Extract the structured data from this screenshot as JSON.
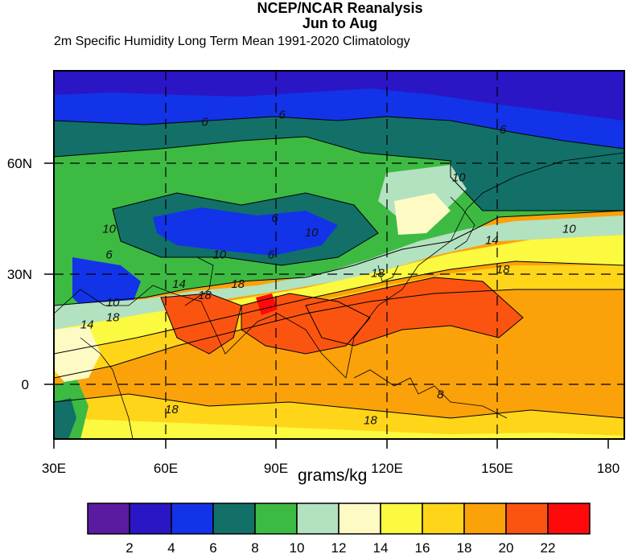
{
  "title": "NCEP/NCAR Reanalysis",
  "subtitle": "Jun to Aug",
  "description": "2m Specific Humidity Long Term Mean 1991-2020 Climatology",
  "units": "grams/kg",
  "x_ticks": [
    "30E",
    "60E",
    "90E",
    "120E",
    "150E",
    "180"
  ],
  "y_ticks": [
    "60N",
    "30N",
    "0"
  ],
  "contour_labels": [
    {
      "text": "6",
      "lon": 71,
      "lat": 70
    },
    {
      "text": "6",
      "lon": 92,
      "lat": 72
    },
    {
      "text": "6",
      "lon": 152,
      "lat": 68
    },
    {
      "text": "10",
      "lon": 140,
      "lat": 55
    },
    {
      "text": "10",
      "lon": 45,
      "lat": 41
    },
    {
      "text": "6",
      "lon": 90,
      "lat": 44
    },
    {
      "text": "10",
      "lon": 100,
      "lat": 40
    },
    {
      "text": "10",
      "lon": 170,
      "lat": 41
    },
    {
      "text": "6",
      "lon": 45,
      "lat": 34
    },
    {
      "text": "10",
      "lon": 75,
      "lat": 34
    },
    {
      "text": "6",
      "lon": 89,
      "lat": 34
    },
    {
      "text": "14",
      "lon": 149,
      "lat": 38
    },
    {
      "text": "18",
      "lon": 118,
      "lat": 29
    },
    {
      "text": "18",
      "lon": 152,
      "lat": 30
    },
    {
      "text": "14",
      "lon": 64,
      "lat": 26
    },
    {
      "text": "18",
      "lon": 71,
      "lat": 23
    },
    {
      "text": "18",
      "lon": 80,
      "lat": 26
    },
    {
      "text": "10",
      "lon": 46,
      "lat": 21
    },
    {
      "text": "18",
      "lon": 46,
      "lat": 17
    },
    {
      "text": "14",
      "lon": 39,
      "lat": 15
    },
    {
      "text": "18",
      "lon": 62,
      "lat": -8
    },
    {
      "text": "18",
      "lon": 116,
      "lat": -11
    },
    {
      "text": "8",
      "lon": 135,
      "lat": -4
    }
  ],
  "colorbar": {
    "labels": [
      "2",
      "4",
      "6",
      "8",
      "10",
      "12",
      "14",
      "16",
      "18",
      "20",
      "22"
    ],
    "colors": [
      "#5b1ba0",
      "#2a16c4",
      "#1333e8",
      "#127068",
      "#3dba42",
      "#b3e2c0",
      "#fdfac4",
      "#fbf940",
      "#ffd51a",
      "#fba20a",
      "#fb5410",
      "#ff0a0a"
    ]
  }
}
